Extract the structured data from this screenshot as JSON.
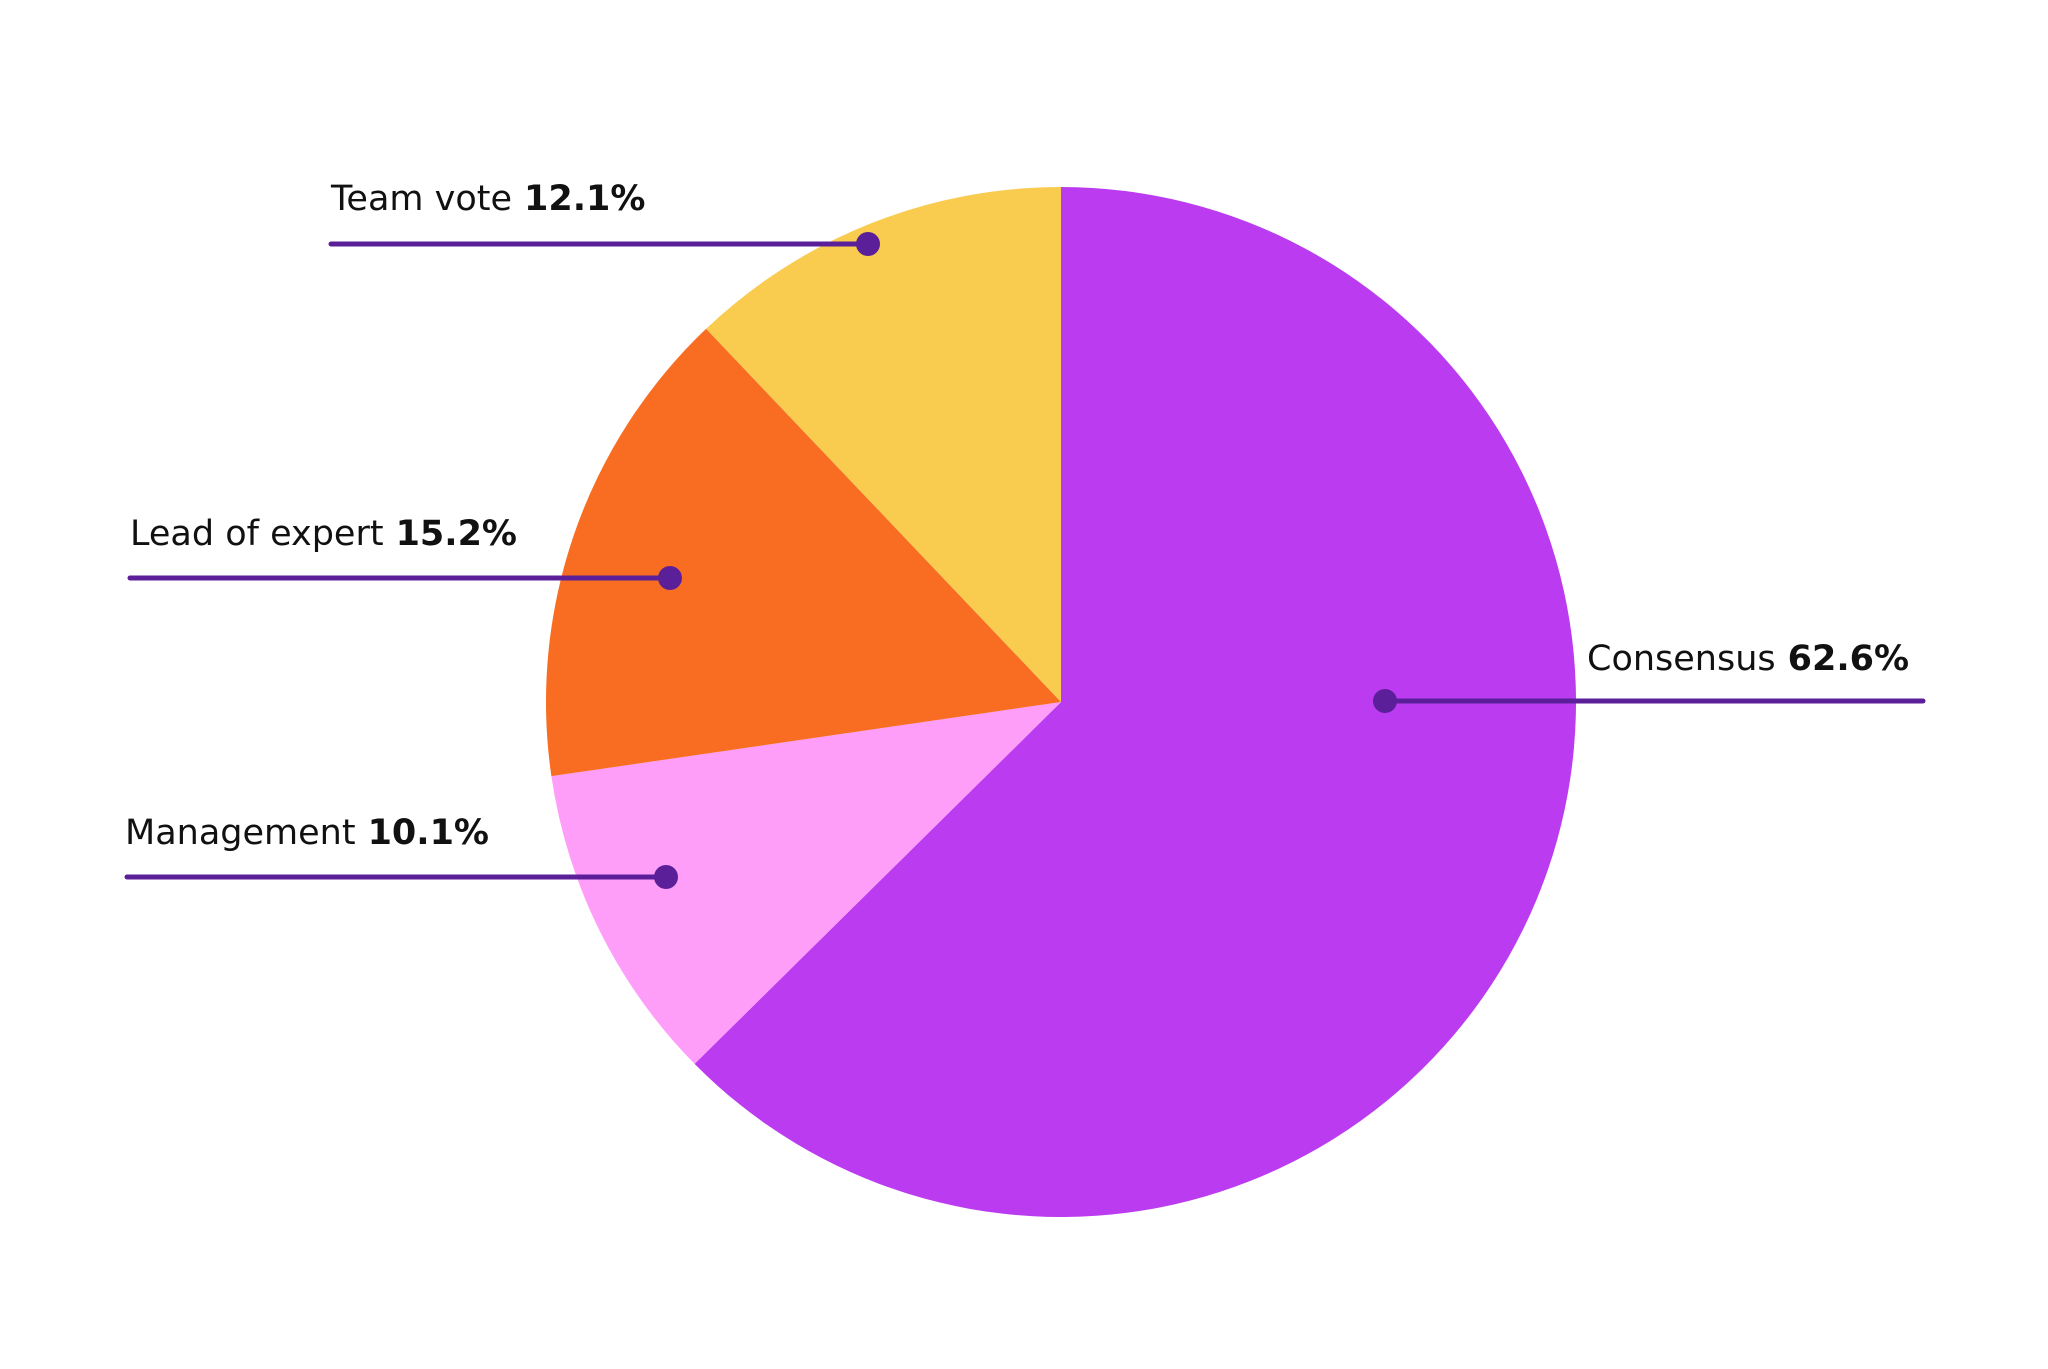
{
  "chart_data": {
    "type": "pie",
    "categories": [
      "Consensus",
      "Management",
      "Lead of expert",
      "Team vote"
    ],
    "values": [
      62.6,
      10.1,
      15.2,
      12.1
    ],
    "value_labels": [
      "62.6%",
      "10.1%",
      "15.2%",
      "12.1%"
    ],
    "colors": [
      "#bb3cf0",
      "#ff9ef9",
      "#f86d21",
      "#f9cc50"
    ]
  }
}
